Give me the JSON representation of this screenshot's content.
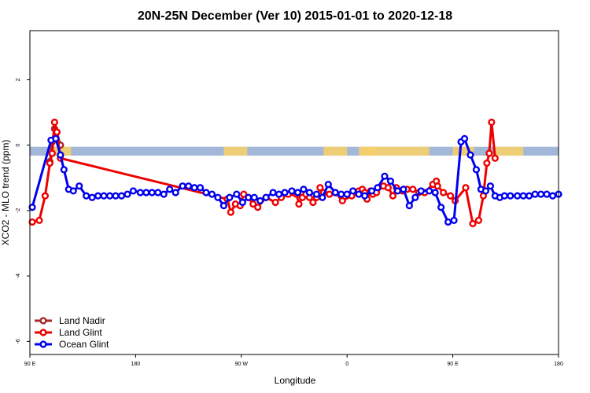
{
  "chart_data": {
    "type": "line",
    "title": "20N-25N December (Ver 10)   2015-01-01 to 2020-12-18",
    "xlabel": "Longitude",
    "ylabel": "XCO2 - MLO trend (ppm)",
    "xlim": [
      90,
      540
    ],
    "ylim": [
      -6.4,
      3.5
    ],
    "x_ticks": [
      {
        "value": 90,
        "label": "90 E"
      },
      {
        "value": 180,
        "label": "180"
      },
      {
        "value": 270,
        "label": "90 W"
      },
      {
        "value": 360,
        "label": "0"
      },
      {
        "value": 450,
        "label": "90 E"
      },
      {
        "value": 540,
        "label": "180"
      }
    ],
    "y_ticks": [
      {
        "value": 2,
        "label": "2"
      },
      {
        "value": 0,
        "label": "0"
      },
      {
        "value": -2,
        "label": "-2"
      },
      {
        "value": -4,
        "label": "-4"
      },
      {
        "value": -6,
        "label": "-6"
      }
    ],
    "reference_band": {
      "ymin": -0.32,
      "ymax": -0.05,
      "color": "#a3b8d8",
      "land_color": "#f5cf6b"
    },
    "land_segments": [
      [
        108,
        125
      ],
      [
        255,
        275
      ],
      [
        340,
        360
      ],
      [
        374,
        386
      ],
      [
        450,
        468
      ],
      [
        486,
        510
      ],
      [
        370,
        430
      ]
    ],
    "legend": {
      "position": "bottom-left",
      "entries": [
        "Land Nadir",
        "Land Glint",
        "Ocean Glint"
      ]
    },
    "series": [
      {
        "name": "Land Nadir",
        "color": "#a52a2a",
        "x": [
          107,
          109,
          111,
          113,
          116
        ],
        "y": [
          -0.5,
          0.1,
          0.5,
          0.4,
          0.0
        ]
      },
      {
        "name": "Land Glint",
        "color": "#ee0000",
        "x": [
          92,
          98,
          103,
          107,
          109,
          111,
          113,
          116,
          258,
          261,
          265,
          269,
          272,
          276,
          280,
          284,
          291,
          299,
          304,
          310,
          314,
          317,
          319,
          322,
          325,
          328,
          331,
          334,
          337,
          340,
          345,
          350,
          356,
          364,
          370,
          373,
          375,
          377,
          380,
          382,
          385,
          391,
          395,
          399,
          402,
          407,
          411,
          416,
          421,
          426,
          433,
          436,
          437,
          442,
          448,
          452,
          461,
          467,
          472,
          476,
          479,
          481,
          483,
          486
        ],
        "y": [
          -2.35,
          -2.3,
          -1.55,
          -0.55,
          -0.25,
          0.7,
          0.4,
          -0.4,
          -1.65,
          -2.05,
          -1.8,
          -1.85,
          -1.5,
          -1.6,
          -1.8,
          -1.9,
          -1.6,
          -1.75,
          -1.6,
          -1.5,
          -1.45,
          -1.5,
          -1.8,
          -1.6,
          -1.5,
          -1.6,
          -1.75,
          -1.6,
          -1.3,
          -1.45,
          -1.5,
          -1.45,
          -1.7,
          -1.55,
          -1.4,
          -1.35,
          -1.45,
          -1.65,
          -1.4,
          -1.5,
          -1.45,
          -1.25,
          -1.3,
          -1.55,
          -1.3,
          -1.4,
          -1.35,
          -1.35,
          -1.45,
          -1.45,
          -1.2,
          -1.1,
          -1.25,
          -1.45,
          -1.55,
          -1.7,
          -1.3,
          -2.4,
          -2.3,
          -1.55,
          -0.55,
          -0.25,
          0.7,
          -0.4
        ]
      },
      {
        "name": "Ocean Glint",
        "color": "#0000ee",
        "x": [
          92,
          108,
          112,
          116,
          119,
          123,
          127,
          132,
          138,
          143,
          148,
          153,
          158,
          163,
          168,
          173,
          178,
          184,
          189,
          194,
          199,
          204,
          209,
          214,
          220,
          225,
          230,
          235,
          240,
          245,
          250,
          255,
          260,
          266,
          271,
          276,
          281,
          286,
          291,
          297,
          302,
          307,
          313,
          318,
          323,
          328,
          334,
          339,
          344,
          350,
          355,
          360,
          365,
          370,
          375,
          381,
          386,
          392,
          397,
          403,
          408,
          413,
          418,
          423,
          430,
          435,
          440,
          446,
          451,
          457,
          460,
          465,
          470,
          474,
          478,
          482,
          486,
          490,
          494,
          499,
          505,
          510,
          515,
          520,
          525,
          530,
          535,
          540
        ],
        "y": [
          -1.9,
          0.15,
          0.2,
          -0.3,
          -0.75,
          -1.35,
          -1.4,
          -1.25,
          -1.55,
          -1.6,
          -1.55,
          -1.55,
          -1.55,
          -1.55,
          -1.55,
          -1.5,
          -1.4,
          -1.45,
          -1.45,
          -1.45,
          -1.45,
          -1.5,
          -1.35,
          -1.45,
          -1.25,
          -1.25,
          -1.3,
          -1.3,
          -1.45,
          -1.5,
          -1.6,
          -1.85,
          -1.6,
          -1.5,
          -1.75,
          -1.6,
          -1.6,
          -1.7,
          -1.6,
          -1.45,
          -1.5,
          -1.45,
          -1.4,
          -1.45,
          -1.35,
          -1.45,
          -1.5,
          -1.6,
          -1.2,
          -1.45,
          -1.5,
          -1.5,
          -1.4,
          -1.5,
          -1.55,
          -1.4,
          -1.3,
          -0.95,
          -1.1,
          -1.4,
          -1.35,
          -1.85,
          -1.6,
          -1.4,
          -1.4,
          -1.45,
          -1.9,
          -2.35,
          -2.3,
          0.1,
          0.2,
          -0.3,
          -0.75,
          -1.35,
          -1.4,
          -1.25,
          -1.55,
          -1.6,
          -1.55,
          -1.55,
          -1.55,
          -1.55,
          -1.55,
          -1.5,
          -1.5,
          -1.5,
          -1.55,
          -1.5
        ]
      }
    ]
  }
}
